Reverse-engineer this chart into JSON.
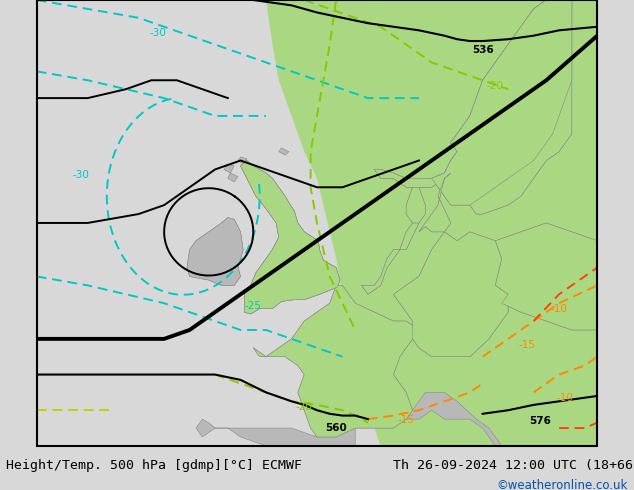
{
  "title_left": "Height/Temp. 500 hPa [gdmp][°C] ECMWF",
  "title_right": "Th 26-09-2024 12:00 UTC (18+66)",
  "credit": "©weatheronline.co.uk",
  "credit_color": "#0055aa",
  "bg_color": "#d8d8d8",
  "land_color": "#b8b8b8",
  "green_color": "#aad882",
  "title_fontsize": 9.5,
  "credit_fontsize": 8.5,
  "map_bg": "#d0d0d0"
}
